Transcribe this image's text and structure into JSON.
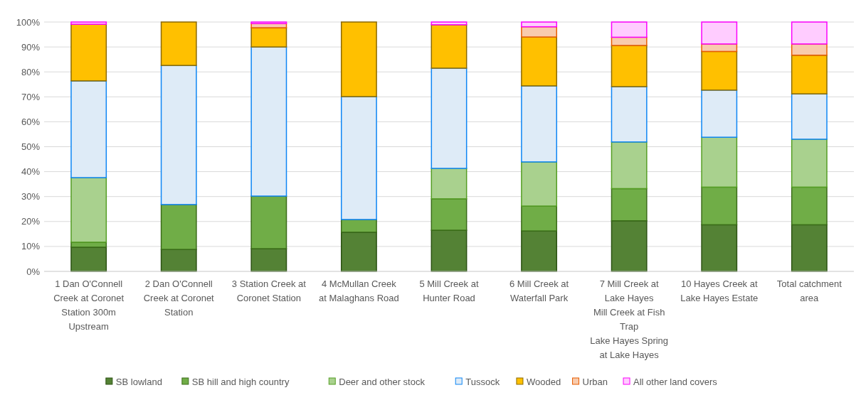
{
  "chart_data": {
    "type": "bar",
    "stacked": true,
    "categories": [
      "1 Dan O'Connell Creek at Coronet Station 300m Upstream",
      "2 Dan O'Connell Creek at Coronet Station",
      "3 Station Creek at Coronet Station",
      "4 McMullan Creek at Malaghans Road",
      "5 Mill Creek at Hunter Road",
      "6 Mill Creek at Waterfall Park",
      "7 Mill Creek at Lake Hayes\nMill Creek at Fish Trap\nLake Hayes Spring at Lake Hayes",
      "10 Hayes Creek at Lake Hayes Estate",
      "Total catchment area"
    ],
    "series": [
      {
        "name": "SB lowland",
        "color": "#548235",
        "values": [
          9.7,
          8.8,
          9.1,
          15.7,
          16.5,
          16.2,
          20.3,
          18.7,
          18.7
        ]
      },
      {
        "name": "SB hill and high country",
        "color": "#70ad47",
        "values": [
          2.0,
          18.0,
          21.1,
          5.1,
          12.6,
          10.0,
          12.9,
          15.1,
          15.1
        ]
      },
      {
        "name": "Deer and other stock",
        "color": "#a9d18e",
        "values": [
          25.9,
          0,
          0,
          0,
          12.2,
          17.7,
          18.7,
          20.0,
          19.2
        ]
      },
      {
        "name": "Tussock",
        "color": "#deebf7",
        "values": [
          38.8,
          55.8,
          59.8,
          49.3,
          40.2,
          30.5,
          22.2,
          18.9,
          18.2
        ]
      },
      {
        "name": "Wooded",
        "color": "#ffc000",
        "values": [
          22.7,
          17.4,
          7.7,
          29.9,
          17.4,
          19.6,
          16.5,
          15.5,
          15.5
        ]
      },
      {
        "name": "Urban",
        "color": "#f8cbad",
        "values": [
          null,
          0,
          1.7,
          0,
          null,
          4.1,
          3.3,
          3.0,
          4.5
        ]
      },
      {
        "name": "All other land covers",
        "color": "#ffccff",
        "values": [
          0.9,
          0,
          0.6,
          0,
          1.1,
          1.9,
          6.1,
          8.8,
          8.8
        ]
      }
    ],
    "ylim": [
      0,
      100
    ],
    "yticks": [
      {
        "value": 0,
        "label": "0%"
      },
      {
        "value": 10,
        "label": "10%"
      },
      {
        "value": 20,
        "label": "20%"
      },
      {
        "value": 30,
        "label": "30%"
      },
      {
        "value": 40,
        "label": "40%"
      },
      {
        "value": 50,
        "label": "50%"
      },
      {
        "value": 60,
        "label": "60%"
      },
      {
        "value": 70,
        "label": "70%"
      },
      {
        "value": 80,
        "label": "80%"
      },
      {
        "value": 90,
        "label": "90%"
      },
      {
        "value": 100,
        "label": "100%"
      }
    ],
    "grid": "y",
    "legend": "bottom"
  }
}
